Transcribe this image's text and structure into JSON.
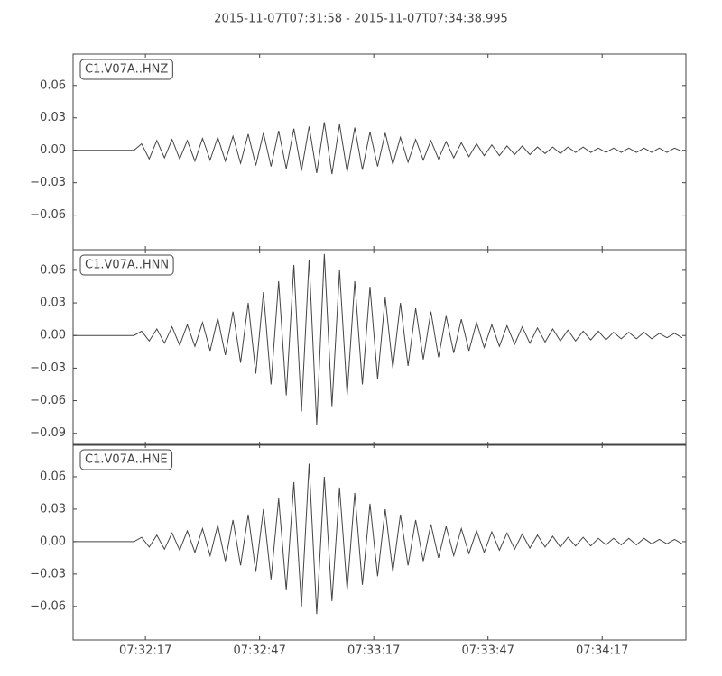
{
  "title": "2015-11-07T07:31:58  -  2015-11-07T07:34:38.995",
  "chart_data": [
    {
      "type": "line",
      "x": [
        "07:31:58",
        "07:32:00",
        "07:32:02",
        "07:32:04",
        "07:32:06",
        "07:32:08",
        "07:32:10",
        "07:32:12",
        "07:32:14",
        "07:32:16",
        "07:32:18",
        "07:32:20",
        "07:32:22",
        "07:32:24",
        "07:32:26",
        "07:32:28",
        "07:32:30",
        "07:32:32",
        "07:32:34",
        "07:32:36",
        "07:32:38",
        "07:32:40",
        "07:32:42",
        "07:32:44",
        "07:32:46",
        "07:32:48",
        "07:32:50",
        "07:32:52",
        "07:32:54",
        "07:32:56",
        "07:32:58",
        "07:33:00",
        "07:33:02",
        "07:33:04",
        "07:33:06",
        "07:33:08",
        "07:33:10",
        "07:33:12",
        "07:33:14",
        "07:33:16",
        "07:33:18",
        "07:33:20",
        "07:33:22",
        "07:33:24",
        "07:33:26",
        "07:33:28",
        "07:33:30",
        "07:33:32",
        "07:33:34",
        "07:33:36",
        "07:33:38",
        "07:33:40",
        "07:33:42",
        "07:33:44",
        "07:33:46",
        "07:33:48",
        "07:33:50",
        "07:33:52",
        "07:33:54",
        "07:33:56",
        "07:33:58",
        "07:34:00",
        "07:34:02",
        "07:34:04",
        "07:34:06",
        "07:34:08",
        "07:34:10",
        "07:34:12",
        "07:34:14",
        "07:34:16",
        "07:34:18",
        "07:34:20",
        "07:34:22",
        "07:34:24",
        "07:34:26",
        "07:34:28",
        "07:34:30",
        "07:34:32",
        "07:34:34",
        "07:34:36",
        "07:34:38"
      ],
      "series": [
        {
          "name": "C1.V07A..HNZ",
          "color": "#444444",
          "values": [
            0,
            0,
            0,
            0,
            0,
            0,
            0,
            0,
            0,
            0.006,
            -0.008,
            0.009,
            -0.007,
            0.01,
            -0.008,
            0.009,
            -0.01,
            0.011,
            -0.009,
            0.012,
            -0.01,
            0.013,
            -0.012,
            0.015,
            -0.014,
            0.016,
            -0.015,
            0.018,
            -0.017,
            0.02,
            -0.019,
            0.022,
            -0.021,
            0.026,
            -0.022,
            0.024,
            -0.02,
            0.021,
            -0.018,
            0.017,
            -0.015,
            0.016,
            -0.013,
            0.012,
            -0.011,
            0.01,
            -0.009,
            0.009,
            -0.008,
            0.008,
            -0.007,
            0.007,
            -0.006,
            0.006,
            -0.005,
            0.005,
            -0.005,
            0.004,
            -0.004,
            0.004,
            -0.004,
            0.003,
            -0.003,
            0.003,
            -0.003,
            0.003,
            -0.002,
            0.003,
            -0.002,
            0.002,
            -0.002,
            0.002,
            -0.002,
            0.002,
            -0.002,
            0.002,
            -0.002,
            0.002,
            -0.002,
            0.002,
            -0.001
          ]
        }
      ],
      "xlim": [
        "07:31:58",
        "07:34:38.995"
      ],
      "xticks": [
        "07:32:17",
        "07:32:47",
        "07:33:17",
        "07:33:47",
        "07:34:17"
      ],
      "ylim": [
        -0.092,
        0.089
      ],
      "yticks": [
        0.06,
        0.03,
        {
          "value": 0,
          "label": "0.00"
        },
        {
          "value": -0.03,
          "label": "−0.03"
        },
        {
          "value": -0.06,
          "label": "−0.06"
        }
      ]
    },
    {
      "type": "line",
      "x": [
        "07:31:58",
        "07:32:00",
        "07:32:02",
        "07:32:04",
        "07:32:06",
        "07:32:08",
        "07:32:10",
        "07:32:12",
        "07:32:14",
        "07:32:16",
        "07:32:18",
        "07:32:20",
        "07:32:22",
        "07:32:24",
        "07:32:26",
        "07:32:28",
        "07:32:30",
        "07:32:32",
        "07:32:34",
        "07:32:36",
        "07:32:38",
        "07:32:40",
        "07:32:42",
        "07:32:44",
        "07:32:46",
        "07:32:48",
        "07:32:50",
        "07:32:52",
        "07:32:54",
        "07:32:56",
        "07:32:58",
        "07:33:00",
        "07:33:02",
        "07:33:04",
        "07:33:06",
        "07:33:08",
        "07:33:10",
        "07:33:12",
        "07:33:14",
        "07:33:16",
        "07:33:18",
        "07:33:20",
        "07:33:22",
        "07:33:24",
        "07:33:26",
        "07:33:28",
        "07:33:30",
        "07:33:32",
        "07:33:34",
        "07:33:36",
        "07:33:38",
        "07:33:40",
        "07:33:42",
        "07:33:44",
        "07:33:46",
        "07:33:48",
        "07:33:50",
        "07:33:52",
        "07:33:54",
        "07:33:56",
        "07:33:58",
        "07:34:00",
        "07:34:02",
        "07:34:04",
        "07:34:06",
        "07:34:08",
        "07:34:10",
        "07:34:12",
        "07:34:14",
        "07:34:16",
        "07:34:18",
        "07:34:20",
        "07:34:22",
        "07:34:24",
        "07:34:26",
        "07:34:28",
        "07:34:30",
        "07:34:32",
        "07:34:34",
        "07:34:36",
        "07:34:38"
      ],
      "series": [
        {
          "name": "C1.V07A..HNN",
          "color": "#444444",
          "values": [
            0,
            0,
            0,
            0,
            0,
            0,
            0,
            0,
            0,
            0.004,
            -0.005,
            0.006,
            -0.007,
            0.008,
            -0.009,
            0.01,
            -0.01,
            0.012,
            -0.014,
            0.016,
            -0.018,
            0.022,
            -0.025,
            0.03,
            -0.035,
            0.04,
            -0.045,
            0.05,
            -0.055,
            0.065,
            -0.07,
            0.07,
            -0.082,
            0.075,
            -0.065,
            0.06,
            -0.055,
            0.05,
            -0.045,
            0.045,
            -0.04,
            0.035,
            -0.03,
            0.03,
            -0.028,
            0.025,
            -0.022,
            0.022,
            -0.02,
            0.018,
            -0.016,
            0.015,
            -0.014,
            0.012,
            -0.011,
            0.01,
            -0.01,
            0.009,
            -0.008,
            0.008,
            -0.007,
            0.007,
            -0.006,
            0.006,
            -0.005,
            0.005,
            -0.005,
            0.004,
            -0.004,
            0.004,
            -0.004,
            0.003,
            -0.003,
            0.003,
            -0.003,
            0.003,
            -0.003,
            0.002,
            -0.002,
            0.002,
            -0.002
          ]
        }
      ],
      "xlim": [
        "07:31:58",
        "07:34:38.995"
      ],
      "xticks": [
        "07:32:17",
        "07:32:47",
        "07:33:17",
        "07:33:47",
        "07:34:17"
      ],
      "ylim": [
        -0.101,
        0.079
      ],
      "yticks": [
        0.06,
        0.03,
        {
          "value": 0,
          "label": "0.00"
        },
        {
          "value": -0.03,
          "label": "−0.03"
        },
        {
          "value": -0.06,
          "label": "−0.06"
        },
        {
          "value": -0.09,
          "label": "−0.09"
        }
      ]
    },
    {
      "type": "line",
      "x": [
        "07:31:58",
        "07:32:00",
        "07:32:02",
        "07:32:04",
        "07:32:06",
        "07:32:08",
        "07:32:10",
        "07:32:12",
        "07:32:14",
        "07:32:16",
        "07:32:18",
        "07:32:20",
        "07:32:22",
        "07:32:24",
        "07:32:26",
        "07:32:28",
        "07:32:30",
        "07:32:32",
        "07:32:34",
        "07:32:36",
        "07:32:38",
        "07:32:40",
        "07:32:42",
        "07:32:44",
        "07:32:46",
        "07:32:48",
        "07:32:50",
        "07:32:52",
        "07:32:54",
        "07:32:56",
        "07:32:58",
        "07:33:00",
        "07:33:02",
        "07:33:04",
        "07:33:06",
        "07:33:08",
        "07:33:10",
        "07:33:12",
        "07:33:14",
        "07:33:16",
        "07:33:18",
        "07:33:20",
        "07:33:22",
        "07:33:24",
        "07:33:26",
        "07:33:28",
        "07:33:30",
        "07:33:32",
        "07:33:34",
        "07:33:36",
        "07:33:38",
        "07:33:40",
        "07:33:42",
        "07:33:44",
        "07:33:46",
        "07:33:48",
        "07:33:50",
        "07:33:52",
        "07:33:54",
        "07:33:56",
        "07:33:58",
        "07:34:00",
        "07:34:02",
        "07:34:04",
        "07:34:06",
        "07:34:08",
        "07:34:10",
        "07:34:12",
        "07:34:14",
        "07:34:16",
        "07:34:18",
        "07:34:20",
        "07:34:22",
        "07:34:24",
        "07:34:26",
        "07:34:28",
        "07:34:30",
        "07:34:32",
        "07:34:34",
        "07:34:36",
        "07:34:38"
      ],
      "series": [
        {
          "name": "C1.V07A..HNE",
          "color": "#444444",
          "values": [
            0,
            0,
            0,
            0,
            0,
            0,
            0,
            0,
            0,
            0.004,
            -0.005,
            0.006,
            -0.007,
            0.008,
            -0.008,
            0.01,
            -0.01,
            0.012,
            -0.013,
            0.015,
            -0.018,
            0.02,
            -0.022,
            0.025,
            -0.028,
            0.03,
            -0.035,
            0.04,
            -0.045,
            0.055,
            -0.06,
            0.072,
            -0.067,
            0.06,
            -0.055,
            0.05,
            -0.045,
            0.045,
            -0.04,
            0.035,
            -0.032,
            0.03,
            -0.028,
            0.025,
            -0.022,
            0.02,
            -0.018,
            0.016,
            -0.015,
            0.014,
            -0.013,
            0.012,
            -0.011,
            0.01,
            -0.01,
            0.009,
            -0.008,
            0.008,
            -0.007,
            0.007,
            -0.006,
            0.006,
            -0.005,
            0.005,
            -0.005,
            0.004,
            -0.004,
            0.004,
            -0.004,
            0.003,
            -0.003,
            0.003,
            -0.003,
            0.003,
            -0.003,
            0.003,
            -0.002,
            0.002,
            -0.002,
            0.002,
            -0.002
          ]
        }
      ],
      "xlim": [
        "07:31:58",
        "07:34:38.995"
      ],
      "xticks": [
        "07:32:17",
        "07:32:47",
        "07:33:17",
        "07:33:47",
        "07:34:17"
      ],
      "ylim": [
        -0.091,
        0.09
      ],
      "yticks": [
        0.06,
        0.03,
        {
          "value": 0,
          "label": "0.00"
        },
        {
          "value": -0.03,
          "label": "−0.03"
        },
        {
          "value": -0.06,
          "label": "−0.06"
        }
      ]
    }
  ]
}
